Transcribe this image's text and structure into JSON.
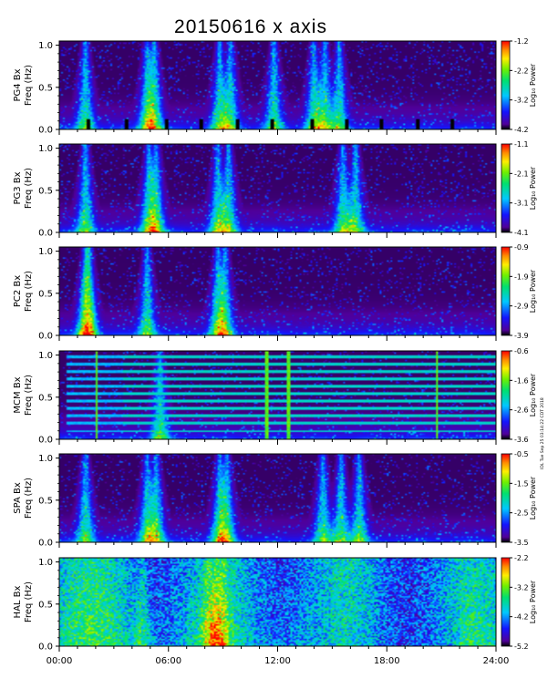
{
  "title": "20150616 x axis",
  "side_note": "IDL Tue Sep 25 03:14:22 CDT 2018",
  "chart_data": [
    {
      "type": "heatmap",
      "ylabel": "PG4 Bx",
      "ylabel2": "Freq (Hz)",
      "yticks": [
        "0.0",
        "0.5",
        "1.0"
      ],
      "ylim": [
        0,
        1.05
      ],
      "xlim": [
        0,
        24
      ],
      "colorbar": {
        "label": "Log₁₀ Power",
        "ticks": [
          "-1.2",
          "-2.2",
          "-3.2",
          "-4.2"
        ],
        "range": [
          -4.2,
          -1.2
        ]
      },
      "bursts_hours": [
        1.4,
        4.8,
        5.2,
        8.8,
        9.4,
        11.8,
        14.0,
        14.6,
        15.4
      ],
      "gaps_hours": [
        1.6,
        3.7,
        5.9,
        7.8,
        9.8,
        11.7,
        13.9,
        15.8,
        17.7,
        19.7,
        21.6
      ],
      "tones_hz": [],
      "background": "quiet"
    },
    {
      "type": "heatmap",
      "ylabel": "PG3 Bx",
      "ylabel2": "Freq (Hz)",
      "yticks": [
        "0.0",
        "0.5",
        "1.0"
      ],
      "ylim": [
        0,
        1.05
      ],
      "xlim": [
        0,
        24
      ],
      "colorbar": {
        "label": "Log₁₀ Power",
        "ticks": [
          "-1.1",
          "-2.1",
          "-3.1",
          "-4.1"
        ],
        "range": [
          -4.1,
          -1.1
        ]
      },
      "bursts_hours": [
        1.4,
        4.9,
        5.3,
        8.7,
        9.3,
        15.6,
        16.3
      ],
      "gaps_hours": [],
      "tones_hz": [],
      "background": "quiet"
    },
    {
      "type": "heatmap",
      "ylabel": "PC2 Bx",
      "ylabel2": "Freq (Hz)",
      "yticks": [
        "0.0",
        "0.5",
        "1.0"
      ],
      "ylim": [
        0,
        1.05
      ],
      "xlim": [
        0,
        24
      ],
      "colorbar": {
        "label": "Log₁₀ Power",
        "ticks": [
          "-0.9",
          "-1.9",
          "-2.9",
          "-3.9"
        ],
        "range": [
          -3.9,
          -0.9
        ]
      },
      "bursts_hours": [
        1.4,
        1.6,
        4.8,
        8.7,
        9.1
      ],
      "gaps_hours": [],
      "tones_hz": [],
      "background": "quiet"
    },
    {
      "type": "heatmap",
      "ylabel": "MCM Bx",
      "ylabel2": "Freq (Hz)",
      "yticks": [
        "0.0",
        "0.5",
        "1.0"
      ],
      "ylim": [
        0,
        1.05
      ],
      "xlim": [
        0,
        24
      ],
      "colorbar": {
        "label": "Log₁₀ Power",
        "ticks": [
          "-0.6",
          "-1.6",
          "-2.6",
          "-3.6"
        ],
        "range": [
          -3.6,
          -0.6
        ]
      },
      "bursts_hours": [
        5.5
      ],
      "gaps_hours": [],
      "tones_hz": [
        0.09,
        0.18,
        0.27,
        0.36,
        0.45,
        0.54,
        0.63,
        0.72,
        0.81,
        0.9,
        0.99
      ],
      "spikes_hours": [
        2.0,
        11.4,
        12.6,
        20.8
      ],
      "background": "quiet"
    },
    {
      "type": "heatmap",
      "ylabel": "SPA Bx",
      "ylabel2": "Freq (Hz)",
      "yticks": [
        "0.0",
        "0.5",
        "1.0"
      ],
      "ylim": [
        0,
        1.05
      ],
      "xlim": [
        0,
        24
      ],
      "colorbar": {
        "label": "Log₁₀ Power",
        "ticks": [
          "-0.5",
          "-1.5",
          "-2.5",
          "-3.5"
        ],
        "range": [
          -3.5,
          -0.5
        ]
      },
      "bursts_hours": [
        1.4,
        4.8,
        5.3,
        8.8,
        9.2,
        14.5,
        15.5,
        16.5
      ],
      "gaps_hours": [],
      "tones_hz": [],
      "background": "quiet"
    },
    {
      "type": "heatmap",
      "ylabel": "HAL Bx",
      "ylabel2": "Freq (Hz)",
      "yticks": [
        "0.0",
        "0.5",
        "1.0"
      ],
      "ylim": [
        0,
        1.05
      ],
      "xlim": [
        0,
        24
      ],
      "xticks": [
        "00:00",
        "06:00",
        "12:00",
        "18:00",
        "24:00"
      ],
      "colorbar": {
        "label": "Log₁₀ Power",
        "ticks": [
          "-2.2",
          "-3.2",
          "-4.2",
          "-5.2"
        ],
        "range": [
          -5.2,
          -2.2
        ]
      },
      "bursts_hours": [
        4.6,
        8.2,
        8.6,
        9.0
      ],
      "gaps_hours": [],
      "tones_hz": [],
      "background": "active"
    }
  ]
}
